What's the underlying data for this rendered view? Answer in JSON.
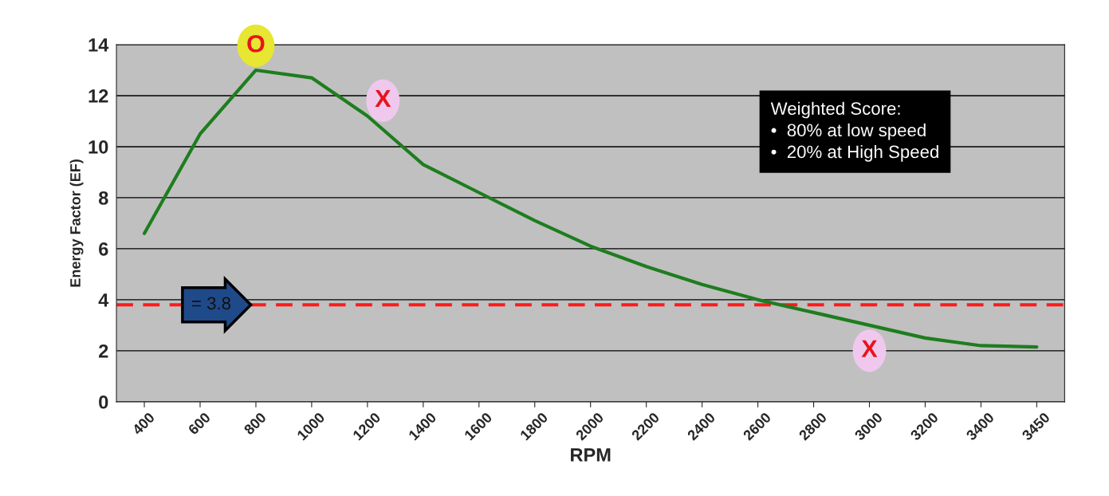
{
  "chart_data": {
    "type": "line",
    "xlabel": "RPM",
    "ylabel": "Energy Factor (EF)",
    "categories": [
      "400",
      "600",
      "800",
      "1000",
      "1200",
      "1400",
      "1600",
      "1800",
      "2000",
      "2200",
      "2400",
      "2600",
      "2800",
      "3000",
      "3200",
      "3400",
      "3450"
    ],
    "series": [
      {
        "color": "#1e7d1e",
        "values": [
          6.6,
          10.5,
          13.0,
          12.7,
          11.2,
          9.3,
          8.2,
          7.1,
          6.1,
          5.3,
          4.6,
          4.0,
          3.5,
          3.0,
          2.5,
          2.2,
          2.15
        ]
      }
    ],
    "ylim": [
      0,
      14
    ],
    "yticks": [
      0,
      2,
      4,
      6,
      8,
      10,
      12,
      14
    ],
    "grid": "y",
    "marker": "none",
    "line_style": "solid",
    "ref_lines": [
      {
        "axis": "y",
        "value": 3.8,
        "label": "= 3.8",
        "color": "#ff1a1a",
        "line_style": "dashed"
      }
    ],
    "annotations": [
      {
        "text": "O",
        "x": "800",
        "y": 13.0
      },
      {
        "text": "X",
        "x": "1200",
        "y": 11.2
      },
      {
        "text": "X",
        "x": "3000",
        "y": 3.0
      },
      "Weighted Score:\n•  80% at low speed\n•  20% at High Speed"
    ]
  }
}
